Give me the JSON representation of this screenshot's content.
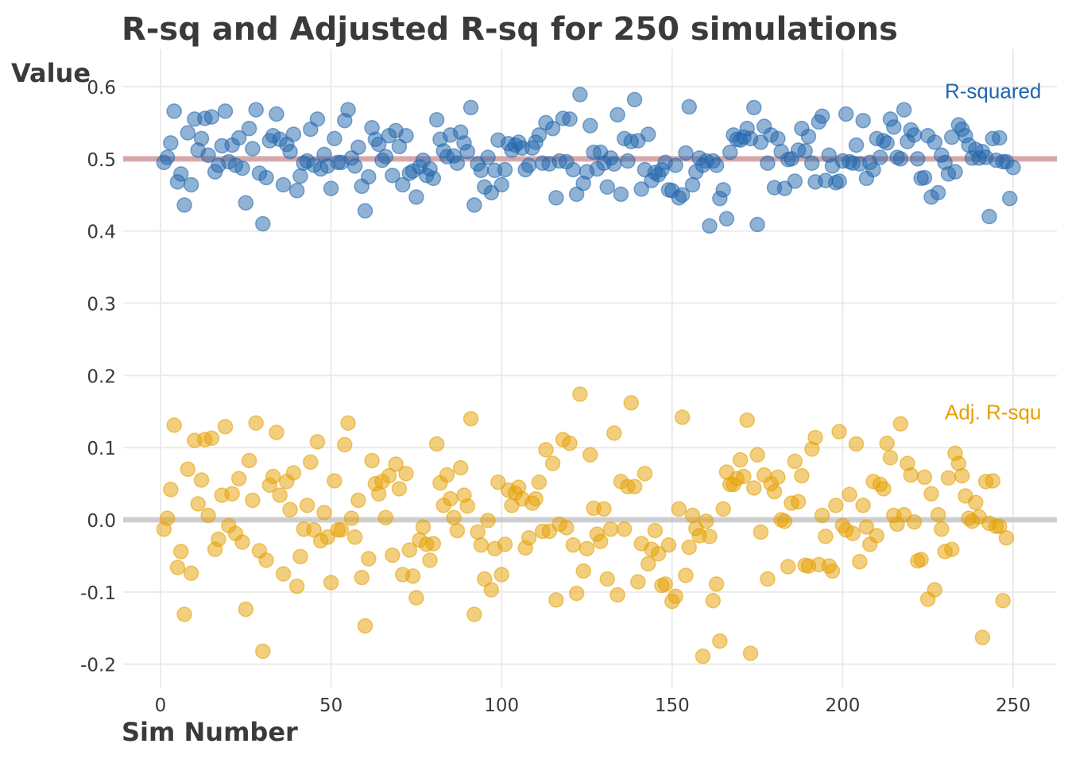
{
  "chart_data": {
    "type": "scatter",
    "title": "R-sq and Adjusted R-sq for 250 simulations",
    "xlabel": "Sim Number",
    "ylabel": "Value",
    "xlim": [
      -10,
      263
    ],
    "ylim": [
      -0.22,
      0.635
    ],
    "x_ticks": [
      0,
      50,
      100,
      150,
      200,
      250
    ],
    "y_ticks": [
      -0.2,
      -0.1,
      0.0,
      0.1,
      0.2,
      0.3,
      0.4,
      0.5,
      0.6
    ],
    "y_tick_labels": [
      "-0.2",
      "-0.1",
      "0.0",
      "0.1",
      "0.2",
      "0.3",
      "0.4",
      "0.5",
      "0.6"
    ],
    "grid": true,
    "reference_lines": [
      {
        "y": 0.5,
        "color": "#c9878a"
      },
      {
        "y": 0.0,
        "color": "#bdbdbd"
      }
    ],
    "series": [
      {
        "name": "R-squared",
        "color": "#2166ac",
        "label_y": 0.594,
        "y": [
          0.495,
          0.502,
          0.522,
          0.566,
          0.468,
          0.479,
          0.436,
          0.536,
          0.464,
          0.555,
          0.512,
          0.528,
          0.556,
          0.505,
          0.558,
          0.482,
          0.491,
          0.518,
          0.566,
          0.496,
          0.519,
          0.491,
          0.529,
          0.487,
          0.439,
          0.542,
          0.514,
          0.568,
          0.48,
          0.41,
          0.474,
          0.525,
          0.532,
          0.562,
          0.527,
          0.464,
          0.52,
          0.51,
          0.534,
          0.456,
          0.476,
          0.494,
          0.497,
          0.541,
          0.491,
          0.555,
          0.486,
          0.506,
          0.49,
          0.459,
          0.528,
          0.495,
          0.495,
          0.553,
          0.568,
          0.501,
          0.49,
          0.516,
          0.462,
          0.428,
          0.475,
          0.543,
          0.527,
          0.52,
          0.498,
          0.503,
          0.532,
          0.477,
          0.539,
          0.517,
          0.464,
          0.532,
          0.48,
          0.483,
          0.447,
          0.489,
          0.498,
          0.477,
          0.486,
          0.473,
          0.554,
          0.527,
          0.511,
          0.503,
          0.533,
          0.504,
          0.494,
          0.537,
          0.522,
          0.51,
          0.571,
          0.436,
          0.493,
          0.484,
          0.461,
          0.502,
          0.453,
          0.484,
          0.526,
          0.464,
          0.485,
          0.521,
          0.512,
          0.519,
          0.523,
          0.515,
          0.485,
          0.491,
          0.515,
          0.523,
          0.533,
          0.494,
          0.55,
          0.493,
          0.542,
          0.446,
          0.497,
          0.556,
          0.496,
          0.555,
          0.485,
          0.451,
          0.589,
          0.466,
          0.482,
          0.546,
          0.509,
          0.486,
          0.509,
          0.494,
          0.461,
          0.501,
          0.493,
          0.561,
          0.451,
          0.528,
          0.497,
          0.524,
          0.582,
          0.525,
          0.458,
          0.485,
          0.534,
          0.47,
          0.481,
          0.478,
          0.485,
          0.495,
          0.457,
          0.456,
          0.491,
          0.446,
          0.45,
          0.508,
          0.572,
          0.464,
          0.482,
          0.501,
          0.491,
          0.497,
          0.407,
          0.497,
          0.491,
          0.445,
          0.457,
          0.417,
          0.509,
          0.533,
          0.527,
          0.526,
          0.53,
          0.542,
          0.528,
          0.571,
          0.409,
          0.523,
          0.545,
          0.494,
          0.533,
          0.46,
          0.528,
          0.51,
          0.459,
          0.499,
          0.5,
          0.469,
          0.512,
          0.542,
          0.511,
          0.531,
          0.494,
          0.468,
          0.551,
          0.559,
          0.47,
          0.505,
          0.49,
          0.467,
          0.469,
          0.497,
          0.562,
          0.496,
          0.494,
          0.519,
          0.493,
          0.553,
          0.473,
          0.495,
          0.485,
          0.528,
          0.502,
          0.525,
          0.522,
          0.555,
          0.544,
          0.502,
          0.5,
          0.568,
          0.524,
          0.54,
          0.533,
          0.5,
          0.473,
          0.474,
          0.532,
          0.447,
          0.523,
          0.453,
          0.505,
          0.495,
          0.479,
          0.53,
          0.482,
          0.547,
          0.541,
          0.532,
          0.519,
          0.501,
          0.513,
          0.501,
          0.51,
          0.502,
          0.42,
          0.528,
          0.498,
          0.529,
          0.496,
          0.496,
          0.445,
          0.488
        ]
      },
      {
        "name": "Adj. R-squ",
        "color": "#e69f00",
        "label_y": 0.149,
        "y": [
          -0.013,
          0.002,
          0.042,
          0.131,
          -0.066,
          -0.044,
          -0.131,
          0.07,
          -0.074,
          0.11,
          0.022,
          0.055,
          0.111,
          0.006,
          0.113,
          -0.041,
          -0.027,
          0.034,
          0.129,
          -0.008,
          0.036,
          -0.019,
          0.057,
          -0.031,
          -0.124,
          0.082,
          0.027,
          0.134,
          -0.043,
          -0.182,
          -0.056,
          0.048,
          0.06,
          0.121,
          0.034,
          -0.075,
          0.053,
          0.014,
          0.065,
          -0.092,
          -0.051,
          -0.013,
          0.02,
          0.08,
          -0.014,
          0.108,
          -0.029,
          0.01,
          -0.024,
          -0.087,
          0.054,
          -0.014,
          -0.014,
          0.104,
          0.134,
          0.002,
          -0.024,
          0.027,
          -0.08,
          -0.147,
          -0.054,
          0.082,
          0.05,
          0.036,
          0.053,
          0.003,
          0.061,
          -0.049,
          0.077,
          0.043,
          -0.076,
          0.064,
          -0.042,
          -0.078,
          -0.108,
          -0.028,
          -0.01,
          -0.034,
          -0.056,
          -0.033,
          0.105,
          0.051,
          0.02,
          0.062,
          0.029,
          0.003,
          -0.015,
          0.072,
          0.034,
          0.019,
          0.14,
          -0.131,
          -0.017,
          -0.035,
          -0.082,
          -0.001,
          -0.097,
          -0.04,
          0.052,
          -0.076,
          -0.034,
          0.041,
          0.02,
          0.037,
          0.045,
          0.029,
          -0.039,
          -0.025,
          0.023,
          0.029,
          0.052,
          -0.016,
          0.097,
          -0.016,
          0.078,
          -0.111,
          -0.006,
          0.111,
          -0.011,
          0.106,
          -0.035,
          -0.102,
          0.174,
          -0.071,
          -0.04,
          0.09,
          0.016,
          -0.02,
          -0.03,
          0.015,
          -0.082,
          -0.013,
          0.12,
          -0.104,
          0.053,
          -0.013,
          0.046,
          0.162,
          0.046,
          -0.086,
          -0.033,
          0.064,
          -0.061,
          -0.041,
          -0.015,
          -0.047,
          -0.091,
          -0.089,
          -0.035,
          -0.113,
          -0.106,
          0.015,
          0.142,
          -0.077,
          -0.038,
          0.006,
          -0.012,
          -0.022,
          -0.189,
          -0.002,
          -0.023,
          -0.112,
          -0.089,
          -0.168,
          0.015,
          0.066,
          0.049,
          0.049,
          0.057,
          0.083,
          0.06,
          0.138,
          -0.185,
          0.044,
          0.09,
          -0.017,
          0.062,
          -0.082,
          0.05,
          0.039,
          0.059,
          0.0,
          -0.002,
          -0.065,
          0.023,
          0.081,
          0.025,
          0.061,
          -0.063,
          -0.064,
          0.098,
          0.114,
          -0.062,
          0.006,
          -0.023,
          -0.064,
          -0.071,
          0.02,
          0.122,
          -0.008,
          -0.014,
          0.035,
          -0.019,
          0.105,
          -0.058,
          0.02,
          -0.01,
          -0.034,
          0.053,
          -0.022,
          0.049,
          0.043,
          0.106,
          0.086,
          0.006,
          -0.006,
          0.133,
          0.007,
          0.078,
          0.062,
          -0.003,
          -0.057,
          -0.055,
          0.059,
          -0.11,
          0.036,
          -0.097,
          0.007,
          -0.013,
          -0.044,
          0.058,
          -0.041,
          0.092,
          0.078,
          0.061,
          0.033,
          0.002,
          -0.002,
          0.024,
          0.004,
          -0.163,
          0.053,
          -0.005,
          0.054,
          -0.009,
          -0.009,
          -0.112,
          -0.025
        ]
      }
    ]
  }
}
